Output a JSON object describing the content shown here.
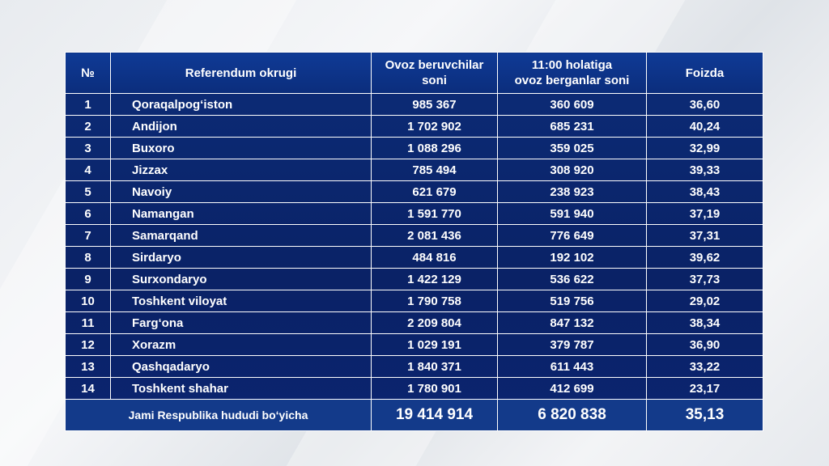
{
  "headers": {
    "num": "№",
    "region": "Referendum okrugi",
    "voters_line1": "Ovoz beruvchilar",
    "voters_line2": "soni",
    "voted_line1": "11:00 holatiga",
    "voted_line2": "ovoz berganlar soni",
    "percent": "Foizda"
  },
  "rows": [
    {
      "n": "1",
      "region": "Qoraqalpog‘iston",
      "voters": "985 367",
      "voted": "360 609",
      "percent": "36,60"
    },
    {
      "n": "2",
      "region": "Andijon",
      "voters": "1 702 902",
      "voted": "685 231",
      "percent": "40,24"
    },
    {
      "n": "3",
      "region": "Buxoro",
      "voters": "1 088 296",
      "voted": "359 025",
      "percent": "32,99"
    },
    {
      "n": "4",
      "region": "Jizzax",
      "voters": "785 494",
      "voted": "308 920",
      "percent": "39,33"
    },
    {
      "n": "5",
      "region": "Navoiy",
      "voters": "621 679",
      "voted": "238 923",
      "percent": "38,43"
    },
    {
      "n": "6",
      "region": "Namangan",
      "voters": "1 591 770",
      "voted": "591 940",
      "percent": "37,19"
    },
    {
      "n": "7",
      "region": "Samarqand",
      "voters": "2 081 436",
      "voted": "776 649",
      "percent": "37,31"
    },
    {
      "n": "8",
      "region": "Sirdaryo",
      "voters": "484 816",
      "voted": "192 102",
      "percent": "39,62"
    },
    {
      "n": "9",
      "region": "Surxondaryo",
      "voters": "1 422 129",
      "voted": "536 622",
      "percent": "37,73"
    },
    {
      "n": "10",
      "region": "Toshkent viloyat",
      "voters": "1 790 758",
      "voted": "519 756",
      "percent": "29,02"
    },
    {
      "n": "11",
      "region": "Farg‘ona",
      "voters": "2 209 804",
      "voted": "847 132",
      "percent": "38,34"
    },
    {
      "n": "12",
      "region": "Xorazm",
      "voters": "1 029 191",
      "voted": "379 787",
      "percent": "36,90"
    },
    {
      "n": "13",
      "region": "Qashqadaryo",
      "voters": "1 840 371",
      "voted": "611 443",
      "percent": "33,22"
    },
    {
      "n": "14",
      "region": "Toshkent shahar",
      "voters": "1 780 901",
      "voted": "412 699",
      "percent": "23,17"
    }
  ],
  "total": {
    "label": "Jami Respublika hududi bo‘yicha",
    "voters": "19 414 914",
    "voted": "6 820 838",
    "percent": "35,13"
  }
}
